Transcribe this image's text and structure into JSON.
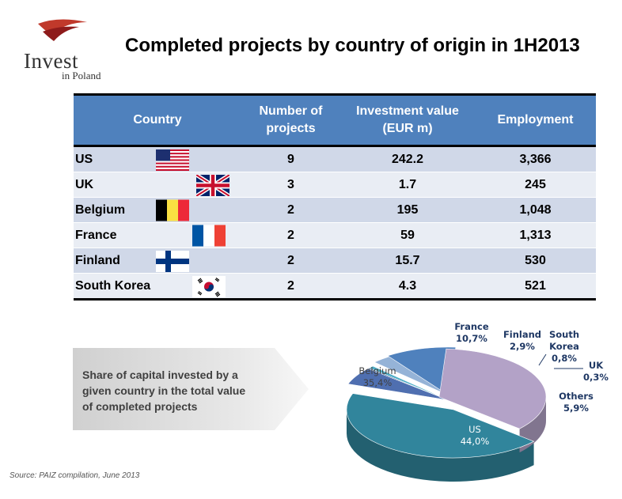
{
  "logo": {
    "main": "Invest",
    "sub": "in Poland"
  },
  "title": "Completed projects by country of origin in 1H2013",
  "table": {
    "headers": [
      "Country",
      "Number of projects",
      "Investment value (EUR m)",
      "Employment"
    ],
    "header_lines": {
      "country": "Country",
      "projects_1": "Number of",
      "projects_2": "projects",
      "value_1": "Investment value",
      "value_2": "(EUR m)",
      "employment": "Employment"
    },
    "rows": [
      {
        "country": "US",
        "flag": "us-flag-icon",
        "projects": "9",
        "value": "242.2",
        "employment": "3,366"
      },
      {
        "country": "UK",
        "flag": "uk-flag-icon",
        "projects": "3",
        "value": "1.7",
        "employment": "245"
      },
      {
        "country": "Belgium",
        "flag": "belgium-flag-icon",
        "projects": "2",
        "value": "195",
        "employment": "1,048"
      },
      {
        "country": "France",
        "flag": "france-flag-icon",
        "projects": "2",
        "value": "59",
        "employment": "1,313"
      },
      {
        "country": "Finland",
        "flag": "finland-flag-icon",
        "projects": "2",
        "value": "15.7",
        "employment": "530"
      },
      {
        "country": "South Korea",
        "flag": "south-korea-flag-icon",
        "projects": "2",
        "value": "4.3",
        "employment": "521"
      }
    ]
  },
  "callout": {
    "line1": "Share of capital invested by a",
    "line2": "given country in the total value",
    "line3": "of completed projects"
  },
  "chart_data": {
    "type": "pie",
    "style": "3d",
    "slices": [
      {
        "label": "US",
        "label_lines": [
          "US"
        ],
        "pct": "44,0%",
        "value": 44.0,
        "color": "#31859c"
      },
      {
        "label": "Others",
        "label_lines": [
          "Others"
        ],
        "pct": "5,9%",
        "value": 5.9,
        "color": "#4f6fb0"
      },
      {
        "label": "UK",
        "label_lines": [
          "UK"
        ],
        "pct": "0,3%",
        "value": 0.3,
        "color": "#1f497d"
      },
      {
        "label": "South Korea",
        "label_lines": [
          "South",
          "Korea"
        ],
        "pct": "0,8%",
        "value": 0.8,
        "color": "#4bacc6"
      },
      {
        "label": "Finland",
        "label_lines": [
          "Finland"
        ],
        "pct": "2,9%",
        "value": 2.9,
        "color": "#95b3d7"
      },
      {
        "label": "France",
        "label_lines": [
          "France"
        ],
        "pct": "10,7%",
        "value": 10.7,
        "color": "#4f81bd"
      },
      {
        "label": "Belgium",
        "label_lines": [
          "Belgium"
        ],
        "pct": "35,4%",
        "value": 35.4,
        "color": "#b3a2c7"
      }
    ]
  },
  "source": "Source: PAIZ compilation, June 2013"
}
